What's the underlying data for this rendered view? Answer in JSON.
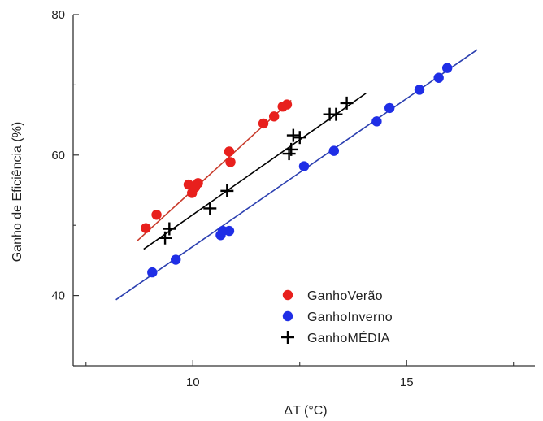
{
  "chart_data": {
    "type": "scatter",
    "xlabel": "ΔT (°C)",
    "ylabel": "Ganho de Eficiência (%)",
    "xlim": [
      7.2,
      18.0
    ],
    "ylim": [
      30,
      80
    ],
    "x_major_ticks": [
      10,
      15
    ],
    "x_minor_ticks": [
      7.5,
      12.5,
      17.5
    ],
    "y_major_ticks": [
      40,
      60,
      80
    ],
    "y_minor_ticks": [
      30,
      50,
      70
    ],
    "grid": false,
    "legend_position": "bottom-right",
    "series": [
      {
        "name": "GanhoVerão",
        "color": "#e8201d",
        "marker": "circle",
        "x": [
          8.9,
          9.15,
          9.9,
          9.98,
          10.05,
          10.12,
          10.85,
          10.88,
          11.65,
          11.9,
          12.1,
          12.2
        ],
        "y": [
          49.6,
          51.5,
          55.8,
          54.6,
          55.4,
          56.0,
          60.5,
          59.0,
          64.5,
          65.5,
          66.9,
          67.2
        ],
        "fit_line": {
          "color": "#c83a2a",
          "x": [
            8.7,
            12.3
          ],
          "y": [
            47.8,
            67.8
          ]
        }
      },
      {
        "name": "GanhoInverno",
        "color": "#1f2ee6",
        "marker": "circle",
        "x": [
          9.05,
          9.6,
          10.65,
          10.7,
          10.85,
          12.6,
          13.3,
          14.3,
          14.6,
          15.3,
          15.75,
          15.95
        ],
        "y": [
          43.3,
          45.1,
          48.6,
          49.2,
          49.2,
          58.4,
          60.6,
          64.8,
          66.7,
          69.3,
          71.0,
          72.4
        ],
        "fit_line": {
          "color": "#2b3fb0",
          "x": [
            8.2,
            16.65
          ],
          "y": [
            39.4,
            75.0
          ]
        }
      },
      {
        "name": "GanhoMÉDIA",
        "color": "#000000",
        "marker": "plus",
        "x": [
          9.35,
          9.45,
          10.4,
          10.8,
          12.25,
          12.3,
          12.35,
          12.5,
          13.2,
          13.35,
          13.6
        ],
        "y": [
          48.2,
          49.5,
          52.4,
          54.9,
          60.2,
          60.8,
          62.8,
          62.5,
          65.8,
          65.8,
          67.4
        ],
        "fit_line": {
          "color": "#000000",
          "x": [
            8.85,
            14.05
          ],
          "y": [
            46.6,
            68.8
          ]
        }
      }
    ]
  }
}
